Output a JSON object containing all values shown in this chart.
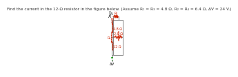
{
  "title": "Find the current in the 12-Ω resistor in the figure below. (Assume R₁ = R₃ = 4.8 Ω, R₂ = R₄ = 6.4 Ω, ΔV = 24 V.)",
  "answer_unit": "A",
  "bg_color": "#ffffff",
  "wire_color": "#888888",
  "resistor_color": "#cc2200",
  "label_color": "#cc2200",
  "title_fontsize": 4.2,
  "label_fontsize": 3.5,
  "lw": 0.7
}
